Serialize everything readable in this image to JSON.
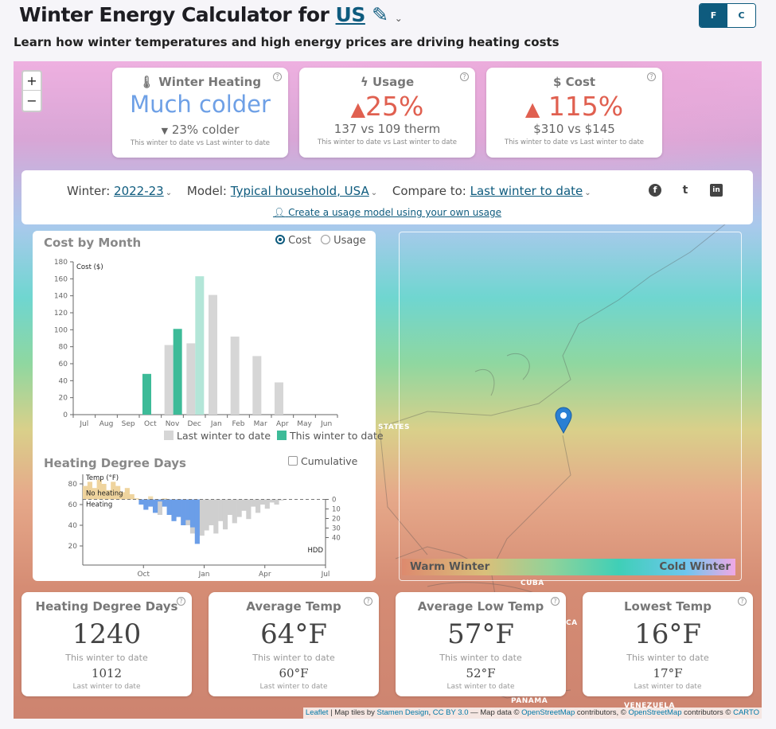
{
  "header": {
    "title_prefix": "Winter Energy Calculator for",
    "region": "US",
    "subtitle": "Learn how winter temperatures and high energy prices are driving heating costs",
    "units": {
      "f": "F",
      "c": "C",
      "selected": "F"
    }
  },
  "map_controls": {
    "zoom_in": "+",
    "zoom_out": "−"
  },
  "stats": [
    {
      "title": "Winter Heating",
      "icon": "thermometer-icon",
      "value": "Much colder",
      "value_color": "#6ea0e6",
      "sub_icon": "triangle-down-icon",
      "sub": "23% colder",
      "note": "This winter to date vs Last winter to date"
    },
    {
      "title": "Usage",
      "icon": "lightning-icon",
      "value": "25%",
      "value_color": "#e06050",
      "sub_icon": "triangle-up-icon",
      "sub": "137 vs 109 therm",
      "note": "This winter to date vs Last winter to date"
    },
    {
      "title": "Cost",
      "icon": "dollar-icon",
      "value": "115%",
      "value_color": "#e06050",
      "sub_icon": "triangle-up-icon",
      "sub": "$310 vs $145",
      "note": "This winter to date vs Last winter to date"
    }
  ],
  "help": "?",
  "controls": {
    "winter_label": "Winter:",
    "winter": "2022-23",
    "model_label": "Model:",
    "model": "Typical household, USA",
    "compare_label": "Compare to:",
    "compare": "Last winter to date",
    "own_usage": "Create a usage model using your own usage",
    "social": {
      "facebook": "f",
      "twitter": "t",
      "linkedin": "in"
    }
  },
  "cost_panel": {
    "title": "Cost by Month",
    "radio_cost": "Cost",
    "radio_usage": "Usage",
    "selected": "Cost"
  },
  "chart_data": [
    {
      "type": "bar",
      "title": "Cost by Month",
      "ylabel": "Cost ($)",
      "ylim": [
        0,
        180
      ],
      "yticks": [
        0,
        20,
        40,
        60,
        80,
        100,
        120,
        140,
        160,
        180
      ],
      "categories": [
        "Jul",
        "Aug",
        "Sep",
        "Oct",
        "Nov",
        "Dec",
        "Jan",
        "Feb",
        "Mar",
        "Apr",
        "May",
        "Jun"
      ],
      "series": [
        {
          "name": "Last winter to date",
          "color": "#d6d6d6",
          "values": [
            0,
            0,
            0,
            0,
            82,
            84,
            141,
            92,
            69,
            38,
            0,
            0
          ]
        },
        {
          "name": "This winter to date",
          "color": "#3dbb98",
          "values": [
            0,
            0,
            0,
            48,
            101,
            163,
            0,
            0,
            0,
            0,
            0,
            0
          ],
          "partial_color": "#b3e6d8"
        }
      ],
      "legend": "bottom-right"
    },
    {
      "type": "area",
      "title": "Heating Degree Days",
      "ylabel": "Temp (°F)",
      "y2label": "HDD",
      "ylim": [
        10,
        90
      ],
      "yticks": [
        20,
        40,
        60,
        80
      ],
      "y2ticks": [
        0,
        10,
        20,
        30,
        40
      ],
      "xticks": [
        "Oct",
        "Jan",
        "Apr",
        "Jul"
      ],
      "threshold": 65,
      "annotations": [
        "No heating",
        "Heating"
      ],
      "cumulative": false,
      "cumulative_label": "Cumulative",
      "weeks_from_jul": [
        0,
        1,
        2,
        3,
        4,
        5,
        6,
        7,
        8,
        9,
        10,
        11,
        12,
        13,
        14,
        15,
        16,
        17,
        18,
        19,
        20,
        21,
        22,
        23,
        24,
        25,
        26,
        27,
        28,
        29,
        30,
        31,
        32,
        33,
        34,
        35,
        36,
        37,
        38,
        39,
        40,
        41,
        42,
        43,
        44
      ],
      "this_winter_temp": [
        78,
        82,
        76,
        84,
        80,
        74,
        82,
        78,
        72,
        76,
        70,
        66,
        60,
        55,
        58,
        52,
        63,
        58,
        50,
        44,
        48,
        40,
        45,
        38,
        22
      ],
      "last_winter_temp": [
        null,
        null,
        null,
        null,
        null,
        null,
        null,
        null,
        null,
        null,
        null,
        null,
        null,
        null,
        68,
        64,
        50,
        66,
        60,
        46,
        62,
        55,
        40,
        32,
        38,
        30,
        35,
        40,
        32,
        44,
        36,
        50,
        42,
        48,
        54,
        46,
        58,
        52,
        60,
        56,
        62,
        60,
        64,
        65,
        65
      ]
    }
  ],
  "legend_bar": {
    "warm": "Warm Winter",
    "cold": "Cold Winter"
  },
  "map_labels": {
    "states": "STATES",
    "cuba": "CUBA",
    "ca": "CA",
    "panama": "PANAMA",
    "venezuela": "VENEZUELA"
  },
  "bottom_cards": [
    {
      "title": "Heating Degree Days",
      "value": "1240",
      "label1": "This winter to date",
      "value2": "1012",
      "label2": "Last winter to date"
    },
    {
      "title": "Average Temp",
      "value": "64°F",
      "label1": "This winter to date",
      "value2": "60°F",
      "label2": "Last winter to date"
    },
    {
      "title": "Average Low Temp",
      "value": "57°F",
      "label1": "This winter to date",
      "value2": "52°F",
      "label2": "Last winter to date"
    },
    {
      "title": "Lowest Temp",
      "value": "16°F",
      "label1": "This winter to date",
      "value2": "17°F",
      "label2": "Last winter to date"
    }
  ],
  "attribution": {
    "leaflet": "Leaflet",
    "t1": " | Map tiles by ",
    "stamen": "Stamen Design",
    "cc": "CC BY 3.0",
    "t2": " — Map data © ",
    "osm1": "OpenStreetMap",
    "t3": " contributors, © ",
    "osm2": "OpenStreetMap",
    "t4": " contributors © ",
    "carto": "CARTO"
  }
}
